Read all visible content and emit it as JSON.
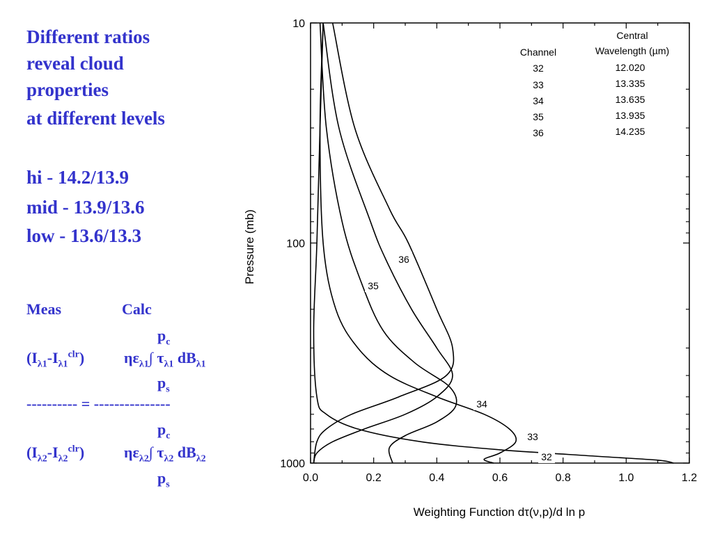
{
  "left_text": {
    "heading": [
      "Different ratios",
      "reveal cloud",
      "properties",
      "at different levels"
    ],
    "levels": [
      "hi - 14.2/13.9",
      "mid - 13.9/13.6",
      "low - 13.6/13.3"
    ],
    "meas_label": "Meas",
    "calc_label": "Calc",
    "divider": "---------- = ---------------"
  },
  "chart_data": {
    "type": "line",
    "xlabel": "Weighting Function dτ(ν,p)/d ln p",
    "ylabel": "Pressure (mb)",
    "xlim": [
      0.0,
      1.2
    ],
    "ylim": [
      1000,
      10
    ],
    "y_scale": "log",
    "y_inverted": true,
    "xticks": [
      "0.0",
      "0.2",
      "0.4",
      "0.6",
      "0.8",
      "1.0",
      "1.2"
    ],
    "yticks": [
      "10",
      "100",
      "1000"
    ],
    "legend_table": {
      "header_col1": "Channel",
      "header_col2_line1": "Central",
      "header_col2_line2": "Wavelength (µm)",
      "rows": [
        [
          "32",
          "12.020"
        ],
        [
          "33",
          "13.335"
        ],
        [
          "34",
          "13.635"
        ],
        [
          "35",
          "13.935"
        ],
        [
          "36",
          "14.235"
        ]
      ],
      "placement": "top-right"
    },
    "series": [
      {
        "name": "32",
        "points": [
          [
            0.04,
            10
          ],
          [
            0.03,
            30
          ],
          [
            0.02,
            100
          ],
          [
            0.01,
            250
          ],
          [
            0.02,
            500
          ],
          [
            0.05,
            600
          ],
          [
            0.15,
            700
          ],
          [
            0.35,
            800
          ],
          [
            0.6,
            870
          ],
          [
            0.9,
            930
          ],
          [
            1.1,
            970
          ],
          [
            1.15,
            1000
          ]
        ]
      },
      {
        "name": "33",
        "points": [
          [
            0.04,
            10
          ],
          [
            0.03,
            30
          ],
          [
            0.04,
            100
          ],
          [
            0.08,
            200
          ],
          [
            0.15,
            300
          ],
          [
            0.25,
            400
          ],
          [
            0.4,
            500
          ],
          [
            0.55,
            600
          ],
          [
            0.63,
            700
          ],
          [
            0.65,
            800
          ],
          [
            0.6,
            900
          ],
          [
            0.55,
            960
          ],
          [
            0.58,
            1000
          ]
        ]
      },
      {
        "name": "34",
        "points": [
          [
            0.03,
            10
          ],
          [
            0.05,
            30
          ],
          [
            0.1,
            80
          ],
          [
            0.16,
            150
          ],
          [
            0.23,
            250
          ],
          [
            0.33,
            350
          ],
          [
            0.44,
            450
          ],
          [
            0.46,
            550
          ],
          [
            0.4,
            650
          ],
          [
            0.3,
            750
          ],
          [
            0.25,
            850
          ],
          [
            0.26,
            1000
          ]
        ]
      },
      {
        "name": "35",
        "points": [
          [
            0.04,
            10
          ],
          [
            0.09,
            30
          ],
          [
            0.19,
            80
          ],
          [
            0.24,
            120
          ],
          [
            0.32,
            200
          ],
          [
            0.4,
            300
          ],
          [
            0.45,
            400
          ],
          [
            0.4,
            500
          ],
          [
            0.3,
            600
          ],
          [
            0.17,
            700
          ],
          [
            0.07,
            800
          ],
          [
            0.02,
            900
          ],
          [
            0.01,
            1000
          ]
        ]
      },
      {
        "name": "36",
        "points": [
          [
            0.07,
            10
          ],
          [
            0.14,
            30
          ],
          [
            0.25,
            70
          ],
          [
            0.31,
            100
          ],
          [
            0.4,
            200
          ],
          [
            0.45,
            300
          ],
          [
            0.43,
            400
          ],
          [
            0.28,
            500
          ],
          [
            0.13,
            600
          ],
          [
            0.05,
            700
          ],
          [
            0.02,
            800
          ],
          [
            0.01,
            1000
          ]
        ]
      }
    ],
    "annotations": [
      "36",
      "35",
      "34",
      "33",
      "32"
    ]
  }
}
